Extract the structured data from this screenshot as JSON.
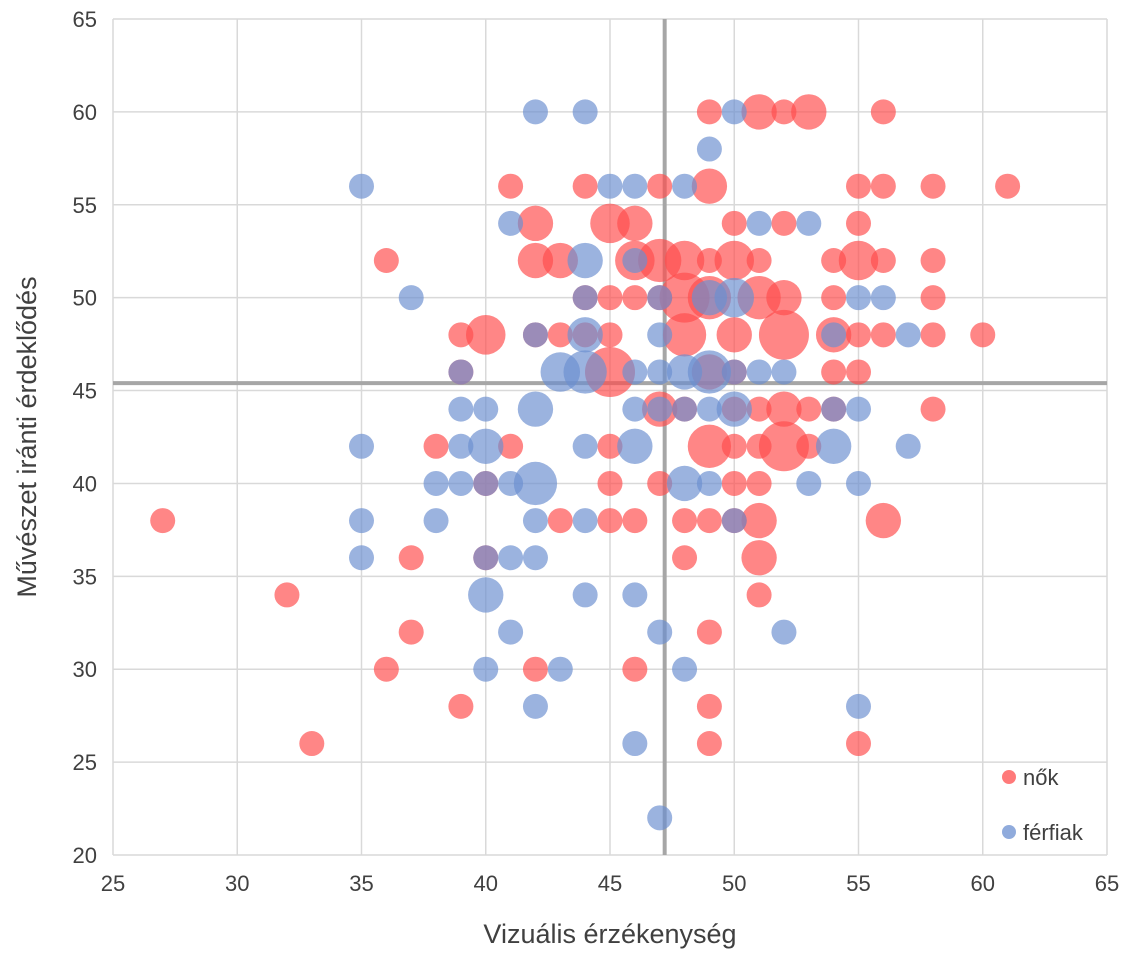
{
  "chart_data": {
    "type": "scatter",
    "subtype": "bubble",
    "xlabel": "Vizuális érzékenység",
    "ylabel": "Művészet iránti érdeklődés",
    "xlim": [
      25,
      65
    ],
    "ylim": [
      20,
      65
    ],
    "xticks": [
      25,
      30,
      35,
      40,
      45,
      50,
      55,
      60,
      65
    ],
    "yticks": [
      20,
      25,
      30,
      35,
      40,
      45,
      50,
      55,
      60,
      65
    ],
    "grid": true,
    "legend_position": "bottom-right",
    "reference_lines": {
      "x_mean": 47.2,
      "y_mean": 45.4
    },
    "series": [
      {
        "name": "nők",
        "color": "#ff4d4d",
        "points": [
          [
            27,
            38,
            1
          ],
          [
            32,
            34,
            1
          ],
          [
            33,
            26,
            1
          ],
          [
            36,
            52,
            1
          ],
          [
            36,
            30,
            1
          ],
          [
            37,
            36,
            1
          ],
          [
            37,
            32,
            1
          ],
          [
            38,
            42,
            1
          ],
          [
            39,
            48,
            1
          ],
          [
            39,
            46,
            1
          ],
          [
            39,
            28,
            1
          ],
          [
            40,
            48,
            2.5
          ],
          [
            40,
            40,
            1
          ],
          [
            40,
            36,
            1
          ],
          [
            41,
            56,
            1
          ],
          [
            41,
            42,
            1
          ],
          [
            42,
            54,
            2
          ],
          [
            42,
            52,
            2
          ],
          [
            42,
            48,
            1
          ],
          [
            42,
            30,
            1
          ],
          [
            43,
            52,
            2
          ],
          [
            43,
            48,
            1
          ],
          [
            43,
            38,
            1
          ],
          [
            44,
            56,
            1
          ],
          [
            44,
            50,
            1
          ],
          [
            44,
            48,
            1
          ],
          [
            45,
            54,
            2.5
          ],
          [
            45,
            50,
            1
          ],
          [
            45,
            48,
            1
          ],
          [
            45,
            46,
            4
          ],
          [
            45,
            42,
            1
          ],
          [
            45,
            40,
            1
          ],
          [
            45,
            38,
            1
          ],
          [
            46,
            54,
            2
          ],
          [
            46,
            52,
            2.5
          ],
          [
            46,
            50,
            1
          ],
          [
            46,
            38,
            1
          ],
          [
            46,
            30,
            1
          ],
          [
            47,
            56,
            1
          ],
          [
            47,
            52,
            3
          ],
          [
            47,
            50,
            1
          ],
          [
            47,
            44,
            2
          ],
          [
            47,
            40,
            1
          ],
          [
            48,
            52,
            2.5
          ],
          [
            48,
            50,
            4
          ],
          [
            48,
            48,
            3
          ],
          [
            48,
            44,
            1
          ],
          [
            48,
            38,
            1
          ],
          [
            48,
            36,
            1
          ],
          [
            49,
            60,
            1
          ],
          [
            49,
            56,
            2
          ],
          [
            49,
            52,
            1
          ],
          [
            49,
            50,
            3
          ],
          [
            49,
            46,
            2
          ],
          [
            49,
            42,
            3
          ],
          [
            49,
            38,
            1
          ],
          [
            49,
            32,
            1
          ],
          [
            49,
            28,
            1
          ],
          [
            49,
            26,
            1
          ],
          [
            50,
            54,
            1
          ],
          [
            50,
            52,
            2.5
          ],
          [
            50,
            48,
            2
          ],
          [
            50,
            46,
            1
          ],
          [
            50,
            44,
            1
          ],
          [
            50,
            42,
            1
          ],
          [
            50,
            40,
            1
          ],
          [
            50,
            38,
            1
          ],
          [
            51,
            60,
            2
          ],
          [
            51,
            52,
            1
          ],
          [
            51,
            50,
            3
          ],
          [
            51,
            44,
            1
          ],
          [
            51,
            42,
            1
          ],
          [
            51,
            40,
            1
          ],
          [
            51,
            38,
            2
          ],
          [
            51,
            36,
            2
          ],
          [
            51,
            34,
            1
          ],
          [
            52,
            60,
            1
          ],
          [
            52,
            54,
            1
          ],
          [
            52,
            50,
            2
          ],
          [
            52,
            48,
            4
          ],
          [
            52,
            44,
            2
          ],
          [
            52,
            42,
            4
          ],
          [
            53,
            60,
            2
          ],
          [
            53,
            44,
            1
          ],
          [
            53,
            42,
            1
          ],
          [
            54,
            52,
            1
          ],
          [
            54,
            50,
            1
          ],
          [
            54,
            48,
            2
          ],
          [
            54,
            46,
            1
          ],
          [
            54,
            44,
            1
          ],
          [
            55,
            56,
            1
          ],
          [
            55,
            54,
            1
          ],
          [
            55,
            52,
            2.5
          ],
          [
            55,
            48,
            1
          ],
          [
            55,
            46,
            1
          ],
          [
            55,
            26,
            1
          ],
          [
            56,
            60,
            1
          ],
          [
            56,
            56,
            1
          ],
          [
            56,
            52,
            1
          ],
          [
            56,
            48,
            1
          ],
          [
            56,
            38,
            2
          ],
          [
            58,
            56,
            1
          ],
          [
            58,
            52,
            1
          ],
          [
            58,
            50,
            1
          ],
          [
            58,
            48,
            1
          ],
          [
            58,
            44,
            1
          ],
          [
            60,
            48,
            1
          ],
          [
            61,
            56,
            1
          ]
        ]
      },
      {
        "name": "férfiak",
        "color": "#6b8fd0",
        "points": [
          [
            35,
            56,
            1
          ],
          [
            35,
            42,
            1
          ],
          [
            35,
            38,
            1
          ],
          [
            35,
            36,
            1
          ],
          [
            37,
            50,
            1
          ],
          [
            38,
            40,
            1
          ],
          [
            38,
            38,
            1
          ],
          [
            39,
            46,
            1
          ],
          [
            39,
            44,
            1
          ],
          [
            39,
            42,
            1
          ],
          [
            39,
            40,
            1
          ],
          [
            40,
            44,
            1
          ],
          [
            40,
            42,
            2
          ],
          [
            40,
            40,
            1
          ],
          [
            40,
            36,
            1
          ],
          [
            40,
            34,
            2
          ],
          [
            40,
            30,
            1
          ],
          [
            41,
            54,
            1
          ],
          [
            41,
            40,
            1
          ],
          [
            41,
            36,
            1
          ],
          [
            41,
            32,
            1
          ],
          [
            42,
            60,
            1
          ],
          [
            42,
            48,
            1
          ],
          [
            42,
            44,
            2
          ],
          [
            42,
            40,
            3
          ],
          [
            42,
            38,
            1
          ],
          [
            42,
            36,
            1
          ],
          [
            42,
            28,
            1
          ],
          [
            43,
            46,
            2.5
          ],
          [
            43,
            30,
            1
          ],
          [
            44,
            60,
            1
          ],
          [
            44,
            52,
            2
          ],
          [
            44,
            50,
            1
          ],
          [
            44,
            48,
            2
          ],
          [
            44,
            46,
            3
          ],
          [
            44,
            42,
            1
          ],
          [
            44,
            38,
            1
          ],
          [
            44,
            34,
            1
          ],
          [
            45,
            56,
            1
          ],
          [
            46,
            56,
            1
          ],
          [
            46,
            52,
            1
          ],
          [
            46,
            46,
            1
          ],
          [
            46,
            44,
            1
          ],
          [
            46,
            42,
            2
          ],
          [
            46,
            34,
            1
          ],
          [
            46,
            26,
            1
          ],
          [
            47,
            50,
            1
          ],
          [
            47,
            48,
            1
          ],
          [
            47,
            46,
            1
          ],
          [
            47,
            44,
            1
          ],
          [
            47,
            32,
            1
          ],
          [
            47,
            22,
            1
          ],
          [
            48,
            56,
            1
          ],
          [
            48,
            46,
            2
          ],
          [
            48,
            44,
            1
          ],
          [
            48,
            40,
            2
          ],
          [
            48,
            30,
            1
          ],
          [
            49,
            58,
            1
          ],
          [
            49,
            50,
            2
          ],
          [
            49,
            46,
            3
          ],
          [
            49,
            44,
            1
          ],
          [
            49,
            40,
            1
          ],
          [
            50,
            60,
            1
          ],
          [
            50,
            50,
            2.5
          ],
          [
            50,
            46,
            1
          ],
          [
            50,
            44,
            2
          ],
          [
            50,
            38,
            1
          ],
          [
            51,
            54,
            1
          ],
          [
            51,
            46,
            1
          ],
          [
            52,
            46,
            1
          ],
          [
            52,
            32,
            1
          ],
          [
            53,
            54,
            1
          ],
          [
            53,
            40,
            1
          ],
          [
            54,
            48,
            1
          ],
          [
            54,
            44,
            1
          ],
          [
            54,
            42,
            2
          ],
          [
            55,
            50,
            1
          ],
          [
            55,
            44,
            1
          ],
          [
            55,
            40,
            1
          ],
          [
            55,
            28,
            1
          ],
          [
            56,
            50,
            1
          ],
          [
            57,
            48,
            1
          ],
          [
            57,
            42,
            1
          ]
        ]
      }
    ]
  }
}
